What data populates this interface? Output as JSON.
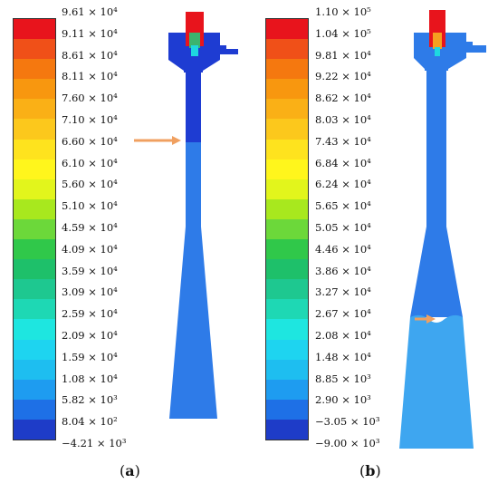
{
  "panels": [
    {
      "id": "a",
      "caption_label": "a",
      "colorbar_labels": [
        "9.61 × 10⁴",
        "9.11 × 10⁴",
        "8.61 × 10⁴",
        "8.11 × 10⁴",
        "7.60 × 10⁴",
        "7.10 × 10⁴",
        "6.60 × 10⁴",
        "6.10 × 10⁴",
        "5.60 × 10⁴",
        "5.10 × 10⁴",
        "4.59 × 10⁴",
        "4.09 × 10⁴",
        "3.59 × 10⁴",
        "3.09 × 10⁴",
        "2.59 × 10⁴",
        "2.09 × 10⁴",
        "1.59 × 10⁴",
        "1.08 × 10⁴",
        "5.82 × 10³",
        "8.04 × 10²",
        "−4.21 × 10³"
      ],
      "arrow_color": "#F0A060"
    },
    {
      "id": "b",
      "caption_label": "b",
      "colorbar_labels": [
        "1.10 × 10⁵",
        "1.04 × 10⁵",
        "9.81 × 10⁴",
        "9.22 × 10⁴",
        "8.62 × 10⁴",
        "8.03 × 10⁴",
        "7.43 × 10⁴",
        "6.84 × 10⁴",
        "6.24 × 10⁴",
        "5.65 × 10⁴",
        "5.05 × 10⁴",
        "4.46 × 10⁴",
        "3.86 × 10⁴",
        "3.27 × 10⁴",
        "2.67 × 10⁴",
        "2.08 × 10⁴",
        "1.48 × 10⁴",
        "8.85 × 10³",
        "2.90 × 10³",
        "−3.05 × 10³",
        "−9.00 × 10³"
      ],
      "arrow_color": "#F0A060"
    }
  ],
  "colormap": [
    "#E8141C",
    "#F05018",
    "#F5780F",
    "#F8970F",
    "#FAB016",
    "#FCC81C",
    "#FEE31E",
    "#FFF61C",
    "#E2F51C",
    "#A8E81E",
    "#6CD83A",
    "#30C84A",
    "#1EC06A",
    "#1EC890",
    "#1ED8B4",
    "#1EE6E0",
    "#1ED4F0",
    "#1EBEF0",
    "#1E9CF0",
    "#1E70E6",
    "#1E3CC8"
  ]
}
